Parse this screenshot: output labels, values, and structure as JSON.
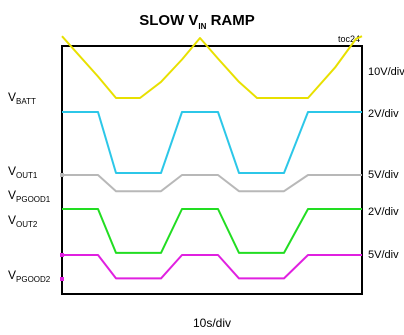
{
  "chart_data": {
    "type": "line",
    "title": {
      "main": "SLOW V",
      "sub": "IN",
      "rest": " RAMP"
    },
    "figure_id": "toc24",
    "xlabel": "10s/div",
    "x_divisions": 10,
    "y_divisions": 8,
    "x": [
      0,
      0.4,
      1.2,
      1.8,
      2.6,
      3.3,
      4.0,
      4.6,
      5.2,
      5.9,
      6.5,
      7.4,
      8.2,
      9.1,
      9.8,
      10
    ],
    "series": [
      {
        "name": {
          "main": "V",
          "sub": "BATT"
        },
        "scale": "10V/div",
        "color": "#e8e000",
        "unit": "V",
        "values": [
          40.0,
          32.5,
          17.5,
          5.5,
          5.5,
          14.5,
          27.0,
          39.0,
          27.5,
          14.5,
          5.5,
          5.5,
          5.5,
          22.5,
          38.5,
          40.0
        ]
      },
      {
        "name": null,
        "scale": "2V/div",
        "color": "#2cc7e8",
        "unit": "V",
        "values": [
          5.0,
          5.0,
          5.0,
          0.2,
          0.2,
          0.2,
          5.0,
          5.0,
          5.0,
          0.2,
          0.2,
          0.2,
          5.0,
          5.0,
          5.0,
          5.0
        ]
      },
      {
        "name": {
          "main": "V",
          "sub": "OUT1"
        },
        "scale": "5V/div",
        "color": "#b8b8b8",
        "unit": "V",
        "values": [
          0.1,
          0.1,
          0.1,
          -2.6,
          -2.6,
          -2.6,
          0.1,
          0.1,
          0.1,
          -2.6,
          -2.6,
          -2.6,
          0.1,
          0.1,
          0.1,
          0.1
        ]
      },
      {
        "name": {
          "main": "V",
          "sub": "PGOOD1"
        },
        "scale": "2V/div",
        "color": "#22dd22",
        "unit": "V",
        "values": [
          5.0,
          5.0,
          5.0,
          -0.1,
          -0.1,
          -0.1,
          5.0,
          5.0,
          5.0,
          -0.1,
          -0.1,
          -0.1,
          5.0,
          5.0,
          5.0,
          5.0
        ]
      },
      {
        "name": {
          "main": "V",
          "sub": "OUT2"
        },
        "scale": "5V/div",
        "color": "#e020e0",
        "unit": "V",
        "values": [
          0.3,
          0.3,
          0.3,
          -3.6,
          -3.6,
          -3.6,
          0.3,
          0.3,
          0.3,
          -3.6,
          -3.6,
          -3.6,
          0.3,
          0.3,
          0.3,
          0.3
        ]
      },
      {
        "name": {
          "main": "V",
          "sub": "PGOOD2"
        },
        "scale": null,
        "color": "#e020e0",
        "unit": "V",
        "values": null
      }
    ],
    "grid": false,
    "legend": "left-labels"
  }
}
